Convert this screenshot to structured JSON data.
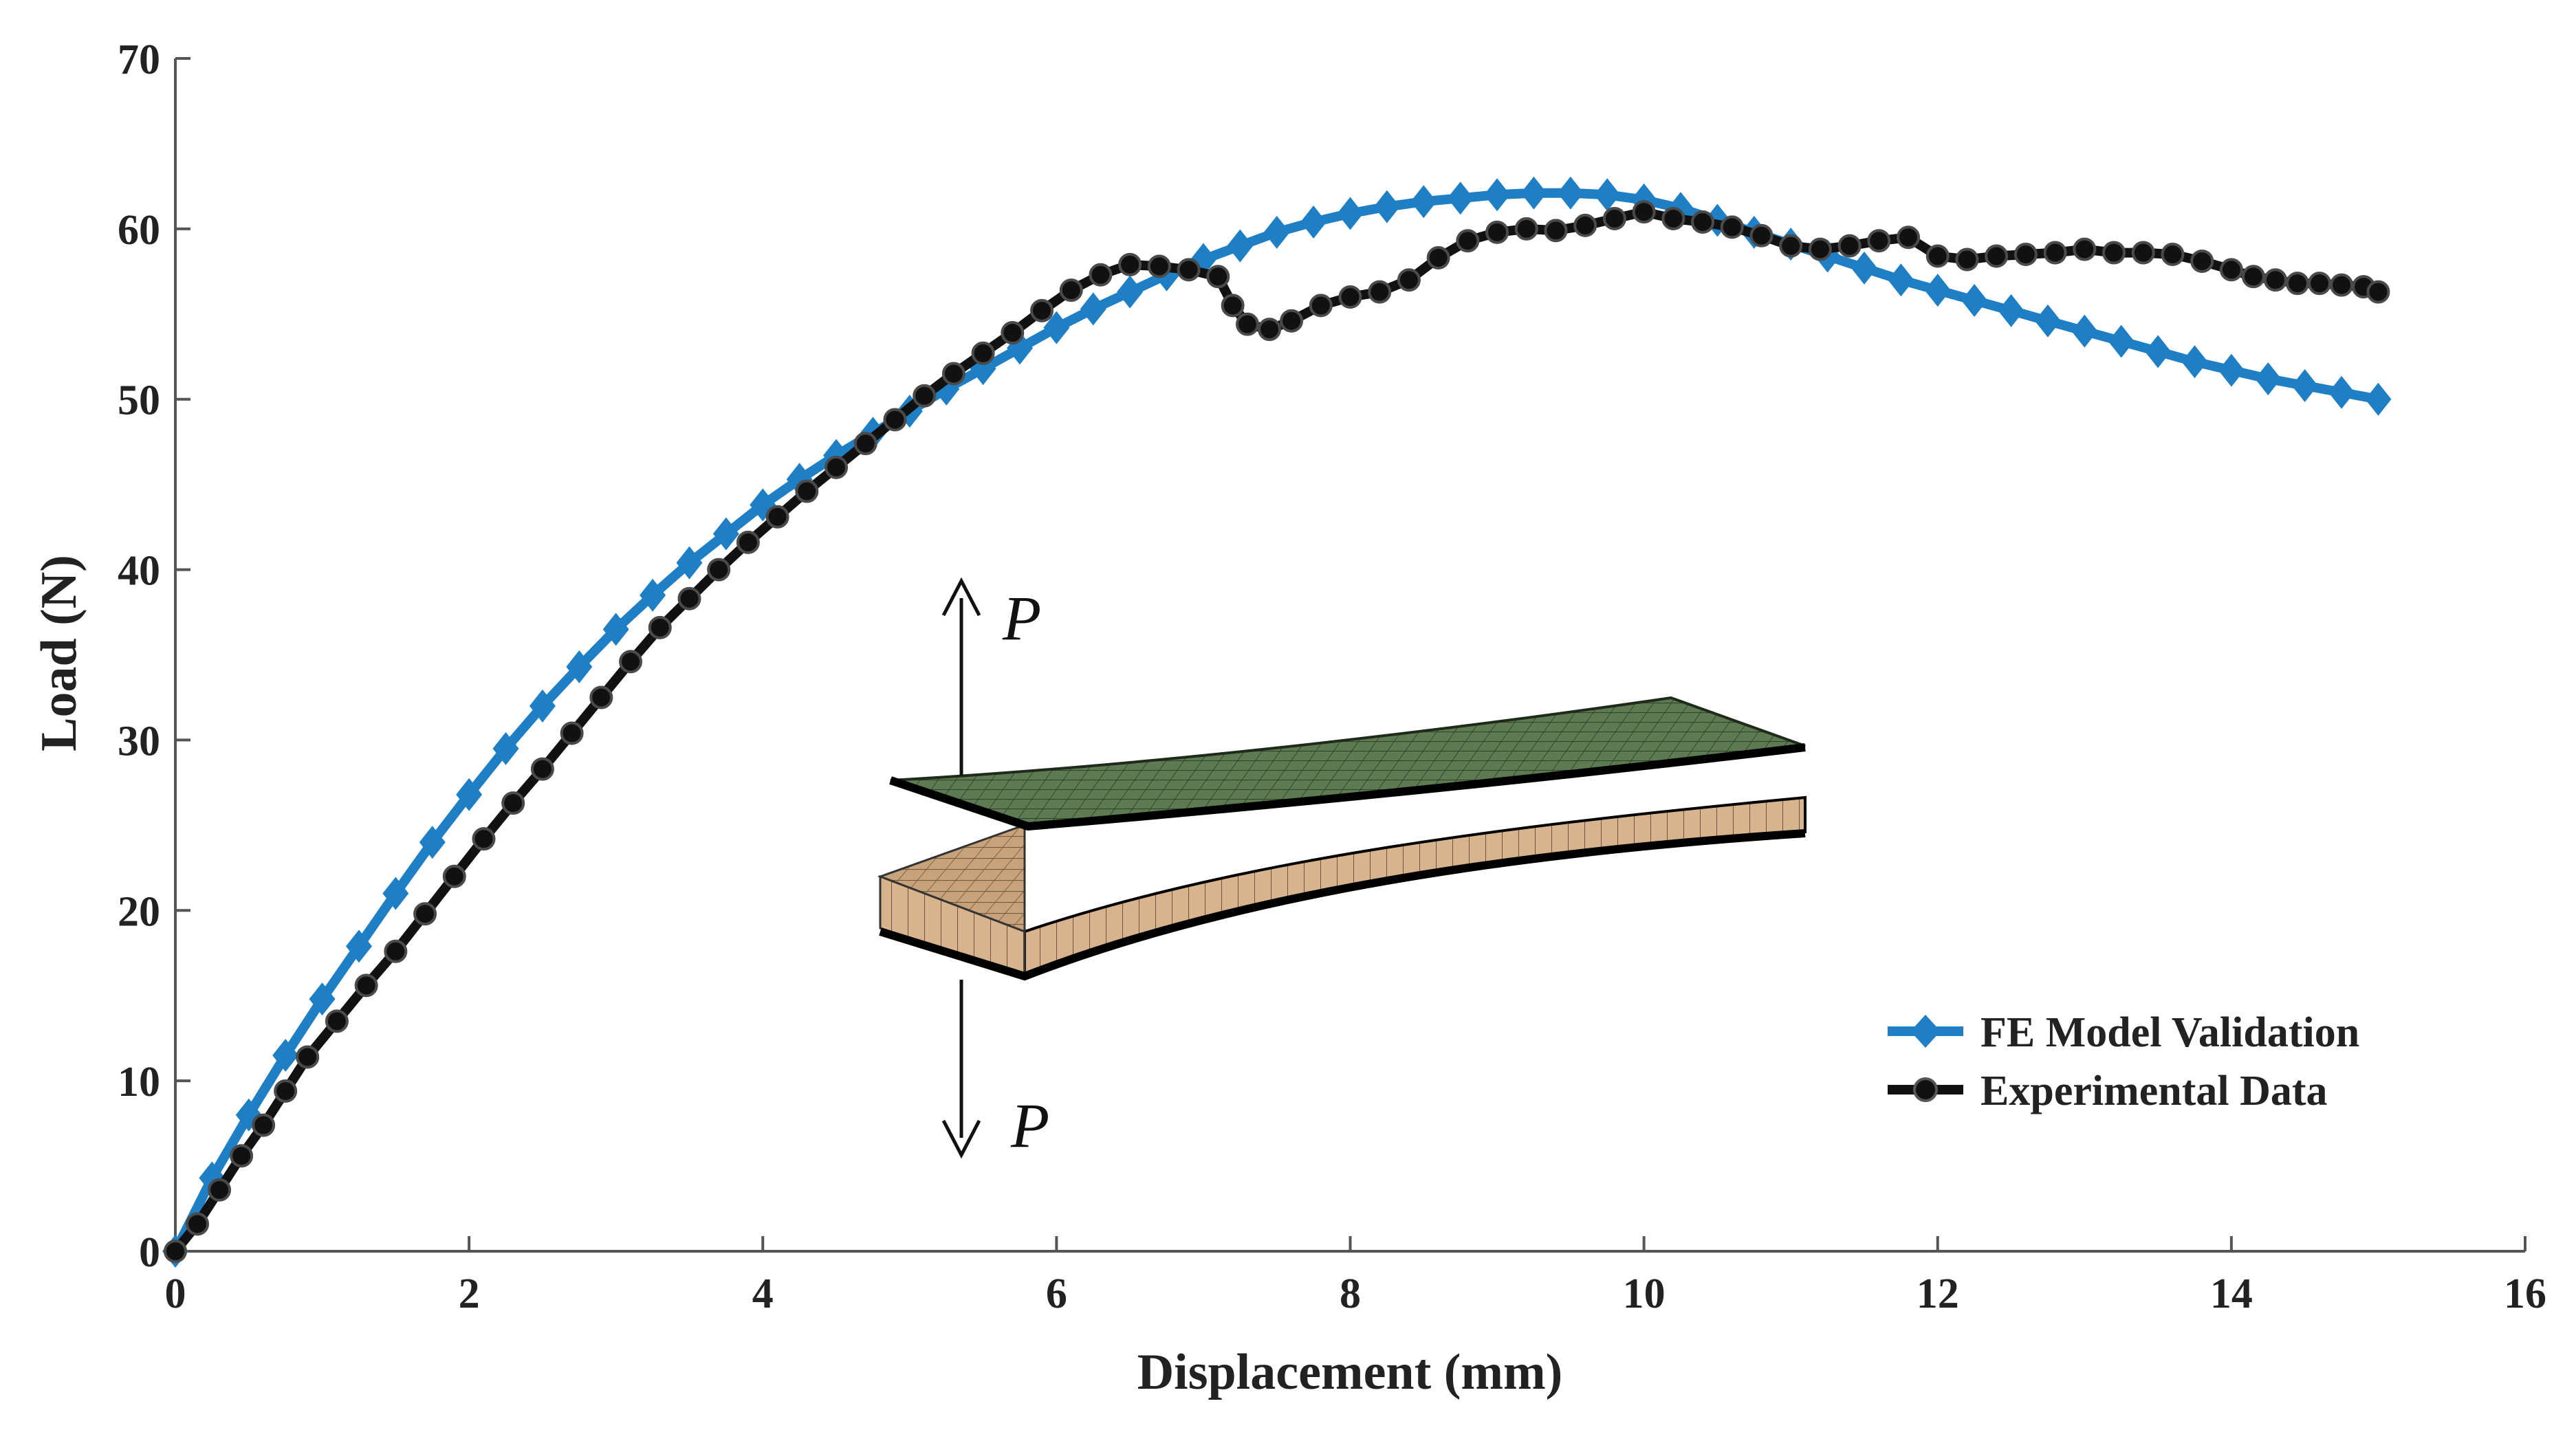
{
  "chart_data": {
    "type": "line",
    "title": "",
    "xlabel": "Displacement (mm)",
    "ylabel": "Load (N)",
    "xlim": [
      0,
      16
    ],
    "ylim": [
      0,
      70
    ],
    "xticks": [
      0,
      2,
      4,
      6,
      8,
      10,
      12,
      14,
      16
    ],
    "yticks": [
      0,
      10,
      20,
      30,
      40,
      50,
      60,
      70
    ],
    "xtick_labels": [
      "0",
      "2",
      "4",
      "6",
      "8",
      "10",
      "12",
      "14",
      "16"
    ],
    "ytick_labels": [
      "0",
      "10",
      "20",
      "30",
      "40",
      "50",
      "60",
      "70"
    ],
    "grid": false,
    "legend_position": "bottom-right",
    "series": [
      {
        "name": "FE Model Validation",
        "color": "#1f7fc4",
        "marker": "diamond",
        "x": [
          0,
          0.25,
          0.5,
          0.75,
          1.0,
          1.25,
          1.5,
          1.75,
          2.0,
          2.25,
          2.5,
          2.75,
          3.0,
          3.25,
          3.5,
          3.75,
          4.0,
          4.25,
          4.5,
          4.75,
          5.0,
          5.25,
          5.5,
          5.75,
          6.0,
          6.25,
          6.5,
          6.75,
          7.0,
          7.25,
          7.5,
          7.75,
          8.0,
          8.25,
          8.5,
          8.75,
          9.0,
          9.25,
          9.5,
          9.75,
          10.0,
          10.25,
          10.5,
          10.75,
          11.0,
          11.25,
          11.5,
          11.75,
          12.0,
          12.25,
          12.5,
          12.75,
          13.0,
          13.25,
          13.5,
          13.75,
          14.0,
          14.25,
          14.5,
          14.75,
          15.0
        ],
        "y": [
          0,
          4.3,
          8.0,
          11.5,
          14.8,
          17.9,
          21.0,
          24.0,
          26.8,
          29.5,
          32.0,
          34.3,
          36.5,
          38.5,
          40.4,
          42.1,
          43.8,
          45.3,
          46.7,
          48.0,
          49.3,
          50.6,
          51.8,
          53.0,
          54.2,
          55.3,
          56.3,
          57.3,
          58.2,
          59.0,
          59.8,
          60.4,
          60.9,
          61.3,
          61.6,
          61.8,
          62.0,
          62.1,
          62.1,
          62.0,
          61.7,
          61.2,
          60.5,
          59.8,
          59.1,
          58.4,
          57.7,
          57.0,
          56.4,
          55.8,
          55.2,
          54.6,
          54.0,
          53.4,
          52.8,
          52.2,
          51.7,
          51.2,
          50.8,
          50.4,
          50.0
        ]
      },
      {
        "name": "Experimental Data",
        "color": "#111111",
        "marker": "circle",
        "x": [
          0,
          0.15,
          0.3,
          0.45,
          0.6,
          0.75,
          0.9,
          1.1,
          1.3,
          1.5,
          1.7,
          1.9,
          2.1,
          2.3,
          2.5,
          2.7,
          2.9,
          3.1,
          3.3,
          3.5,
          3.7,
          3.9,
          4.1,
          4.3,
          4.5,
          4.7,
          4.9,
          5.1,
          5.3,
          5.5,
          5.7,
          5.9,
          6.1,
          6.3,
          6.5,
          6.7,
          6.9,
          7.1,
          7.2,
          7.3,
          7.45,
          7.6,
          7.8,
          8.0,
          8.2,
          8.4,
          8.6,
          8.8,
          9.0,
          9.2,
          9.4,
          9.6,
          9.8,
          10.0,
          10.2,
          10.4,
          10.6,
          10.8,
          11.0,
          11.2,
          11.4,
          11.6,
          11.8,
          12.0,
          12.2,
          12.4,
          12.6,
          12.8,
          13.0,
          13.2,
          13.4,
          13.6,
          13.8,
          14.0,
          14.15,
          14.3,
          14.45,
          14.6,
          14.75,
          14.9,
          15.0
        ],
        "y": [
          0,
          1.6,
          3.6,
          5.6,
          7.4,
          9.4,
          11.4,
          13.5,
          15.6,
          17.6,
          19.8,
          22.0,
          24.2,
          26.3,
          28.3,
          30.4,
          32.5,
          34.6,
          36.6,
          38.3,
          40.0,
          41.6,
          43.1,
          44.6,
          46.0,
          47.4,
          48.8,
          50.2,
          51.5,
          52.7,
          53.9,
          55.2,
          56.4,
          57.3,
          57.9,
          57.8,
          57.6,
          57.2,
          55.5,
          54.4,
          54.1,
          54.6,
          55.5,
          56.0,
          56.3,
          57.0,
          58.3,
          59.3,
          59.8,
          60.0,
          59.9,
          60.2,
          60.6,
          61.0,
          60.6,
          60.4,
          60.1,
          59.6,
          59.0,
          58.8,
          59.0,
          59.3,
          59.5,
          58.4,
          58.2,
          58.4,
          58.5,
          58.6,
          58.8,
          58.6,
          58.6,
          58.5,
          58.1,
          57.6,
          57.2,
          57.0,
          56.8,
          56.8,
          56.7,
          56.6,
          56.3
        ]
      }
    ],
    "annotations": [
      {
        "text": "P",
        "position": "above specimen, upward arrow"
      },
      {
        "text": "P",
        "position": "below specimen, downward arrow"
      }
    ],
    "inset": {
      "description": "FE mesh of DCB specimen"
    }
  }
}
